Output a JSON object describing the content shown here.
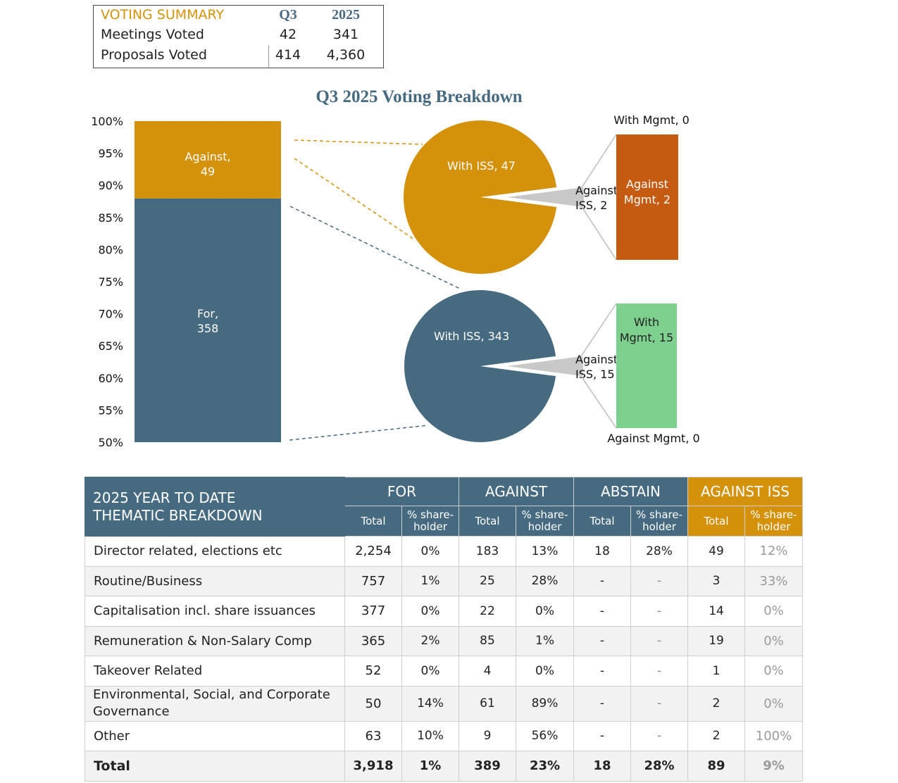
{
  "summary": {
    "title": "VOTING SUMMARY",
    "col_q3": "Q3",
    "col_year": "2025",
    "rows": [
      {
        "label": "Meetings Voted",
        "q3": "42",
        "year": "341"
      },
      {
        "label": "Proposals Voted",
        "q3": "414",
        "year": "4,360"
      }
    ]
  },
  "chart_data": {
    "type": "bar",
    "title": "Q3 2025 Voting Breakdown",
    "ylim": [
      50,
      100
    ],
    "yticks": [
      "50%",
      "55%",
      "60%",
      "65%",
      "70%",
      "75%",
      "80%",
      "85%",
      "90%",
      "95%",
      "100%"
    ],
    "stacked_bar": [
      {
        "name": "For",
        "value": 358,
        "label": "For,\n358"
      },
      {
        "name": "Against",
        "value": 49,
        "label": "Against,\n49"
      }
    ],
    "pies": [
      {
        "source": "Against",
        "slices": [
          {
            "name": "With ISS",
            "value": 47,
            "label": "With ISS, 47"
          },
          {
            "name": "Against ISS",
            "value": 2,
            "label": "Against ISS, 2"
          }
        ],
        "breakdown": [
          {
            "name": "With Mgmt",
            "value": 0,
            "label": "With Mgmt, 0"
          },
          {
            "name": "Against Mgmt",
            "value": 2,
            "label": "Against Mgmt, 2"
          }
        ]
      },
      {
        "source": "For",
        "slices": [
          {
            "name": "With ISS",
            "value": 343,
            "label": "With ISS, 343"
          },
          {
            "name": "Against ISS",
            "value": 15,
            "label": "Against ISS, 15"
          }
        ],
        "breakdown": [
          {
            "name": "With Mgmt",
            "value": 15,
            "label": "With Mgmt, 15"
          },
          {
            "name": "Against Mgmt",
            "value": 0,
            "label": "Against Mgmt, 0"
          }
        ]
      }
    ],
    "colors": {
      "for": "#466A80",
      "against": "#D4920A",
      "against_iss": "#C8C8C8",
      "against_mgmt": "#C55A11",
      "with_mgmt": "#7ED08E"
    }
  },
  "table": {
    "title_line1": "2025 YEAR TO DATE",
    "title_line2": "THEMATIC BREAKDOWN",
    "groups": [
      "FOR",
      "AGAINST",
      "ABSTAIN",
      "AGAINST ISS"
    ],
    "sub_total": "Total",
    "sub_pct_line1": "% share-",
    "sub_pct_line2": "holder",
    "rows": [
      {
        "category": "Director related, elections etc",
        "for_total": "2,254",
        "for_pct": "0%",
        "against_total": "183",
        "against_pct": "13%",
        "abstain_total": "18",
        "abstain_pct": "28%",
        "iss_total": "49",
        "iss_pct": "12%"
      },
      {
        "category": "Routine/Business",
        "for_total": "757",
        "for_pct": "1%",
        "against_total": "25",
        "against_pct": "28%",
        "abstain_total": "-",
        "abstain_pct": "-",
        "iss_total": "3",
        "iss_pct": "33%"
      },
      {
        "category": "Capitalisation incl. share issuances",
        "for_total": "377",
        "for_pct": "0%",
        "against_total": "22",
        "against_pct": "0%",
        "abstain_total": "-",
        "abstain_pct": "-",
        "iss_total": "14",
        "iss_pct": "0%"
      },
      {
        "category": "Remuneration & Non-Salary Comp",
        "for_total": "365",
        "for_pct": "2%",
        "against_total": "85",
        "against_pct": "1%",
        "abstain_total": "-",
        "abstain_pct": "-",
        "iss_total": "19",
        "iss_pct": "0%"
      },
      {
        "category": "Takeover Related",
        "for_total": "52",
        "for_pct": "0%",
        "against_total": "4",
        "against_pct": "0%",
        "abstain_total": "-",
        "abstain_pct": "-",
        "iss_total": "1",
        "iss_pct": "0%"
      },
      {
        "category": "Environmental, Social, and Corporate Governance",
        "for_total": "50",
        "for_pct": "14%",
        "against_total": "61",
        "against_pct": "89%",
        "abstain_total": "-",
        "abstain_pct": "-",
        "iss_total": "2",
        "iss_pct": "0%"
      },
      {
        "category": "Other",
        "for_total": "63",
        "for_pct": "10%",
        "against_total": "9",
        "against_pct": "56%",
        "abstain_total": "-",
        "abstain_pct": "-",
        "iss_total": "2",
        "iss_pct": "100%"
      }
    ],
    "total": {
      "category": "Total",
      "for_total": "3,918",
      "for_pct": "1%",
      "against_total": "389",
      "against_pct": "23%",
      "abstain_total": "18",
      "abstain_pct": "28%",
      "iss_total": "89",
      "iss_pct": "9%"
    }
  }
}
